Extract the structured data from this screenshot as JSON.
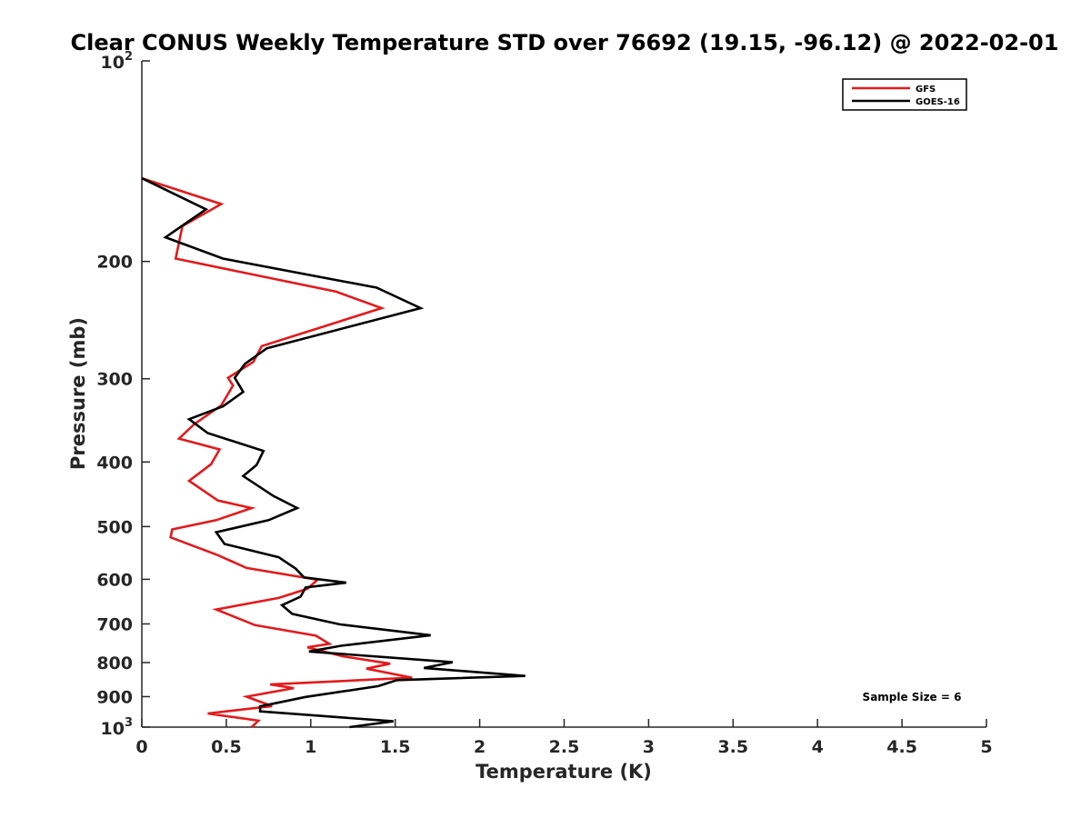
{
  "chart_data": {
    "type": "line",
    "title": "Clear CONUS Weekly Temperature STD over 76692 (19.15, -96.12) @ 2022-02-01",
    "xlabel": "Temperature (K)",
    "ylabel": "Pressure (mb)",
    "xlim": [
      0,
      5
    ],
    "ylim": [
      100,
      1000
    ],
    "y_scale": "log",
    "y_reversed": true,
    "x_ticks": [
      0,
      0.5,
      1,
      1.5,
      2,
      2.5,
      3,
      3.5,
      4,
      4.5,
      5
    ],
    "x_tick_labels": [
      "0",
      "0.5",
      "1",
      "1.5",
      "2",
      "2.5",
      "3",
      "3.5",
      "4",
      "4.5",
      "5"
    ],
    "y_ticks": [
      200,
      300,
      400,
      500,
      600,
      700,
      800,
      900
    ],
    "y_tick_labels": [
      "200",
      "300",
      "400",
      "500",
      "600",
      "700",
      "800",
      "900"
    ],
    "y_bound_labels": [
      {
        "base": "10",
        "exp": "2",
        "value": 100
      },
      {
        "base": "10",
        "exp": "3",
        "value": 1000
      }
    ],
    "legend_position": "top-right",
    "annotation": "Sample Size = 6",
    "series": [
      {
        "name": "GFS",
        "color": "#e31a1c",
        "points": [
          [
            0.0,
            150
          ],
          [
            0.47,
            164
          ],
          [
            0.24,
            177
          ],
          [
            0.2,
            198
          ],
          [
            1.15,
            222
          ],
          [
            1.42,
            235
          ],
          [
            0.71,
            268
          ],
          [
            0.66,
            283
          ],
          [
            0.51,
            299
          ],
          [
            0.54,
            307
          ],
          [
            0.47,
            329
          ],
          [
            0.31,
            351
          ],
          [
            0.22,
            369
          ],
          [
            0.46,
            383
          ],
          [
            0.41,
            403
          ],
          [
            0.28,
            427
          ],
          [
            0.45,
            457
          ],
          [
            0.65,
            469
          ],
          [
            0.44,
            489
          ],
          [
            0.18,
            505
          ],
          [
            0.17,
            519
          ],
          [
            0.45,
            552
          ],
          [
            0.62,
            577
          ],
          [
            1.04,
            601
          ],
          [
            0.98,
            620
          ],
          [
            0.81,
            640
          ],
          [
            0.44,
            666
          ],
          [
            0.67,
            703
          ],
          [
            1.03,
            729
          ],
          [
            1.11,
            750
          ],
          [
            0.98,
            759
          ],
          [
            1.19,
            783
          ],
          [
            1.47,
            803
          ],
          [
            1.33,
            817
          ],
          [
            1.6,
            843
          ],
          [
            0.76,
            863
          ],
          [
            0.9,
            874
          ],
          [
            0.62,
            900
          ],
          [
            0.77,
            930
          ],
          [
            0.39,
            954
          ],
          [
            0.69,
            978
          ],
          [
            0.65,
            1000
          ]
        ]
      },
      {
        "name": "GOES-16",
        "color": "#000000",
        "points": [
          [
            0.0,
            150
          ],
          [
            0.38,
            167
          ],
          [
            0.14,
            184
          ],
          [
            0.48,
            198
          ],
          [
            1.39,
            219
          ],
          [
            1.65,
            235
          ],
          [
            0.74,
            270
          ],
          [
            0.61,
            285
          ],
          [
            0.55,
            299
          ],
          [
            0.6,
            314
          ],
          [
            0.48,
            330
          ],
          [
            0.28,
            345
          ],
          [
            0.39,
            362
          ],
          [
            0.72,
            385
          ],
          [
            0.68,
            404
          ],
          [
            0.6,
            420
          ],
          [
            0.78,
            450
          ],
          [
            0.92,
            469
          ],
          [
            0.75,
            489
          ],
          [
            0.44,
            510
          ],
          [
            0.49,
            531
          ],
          [
            0.81,
            556
          ],
          [
            0.91,
            578
          ],
          [
            0.96,
            596
          ],
          [
            1.21,
            607
          ],
          [
            0.97,
            617
          ],
          [
            0.94,
            637
          ],
          [
            0.83,
            656
          ],
          [
            0.89,
            676
          ],
          [
            1.17,
            701
          ],
          [
            1.71,
            728
          ],
          [
            1.18,
            755
          ],
          [
            0.99,
            770
          ],
          [
            1.84,
            799
          ],
          [
            1.67,
            815
          ],
          [
            2.27,
            838
          ],
          [
            1.51,
            850
          ],
          [
            1.4,
            868
          ],
          [
            0.97,
            901
          ],
          [
            0.7,
            931
          ],
          [
            0.7,
            947
          ],
          [
            1.49,
            980
          ],
          [
            1.23,
            1000
          ]
        ]
      }
    ]
  }
}
